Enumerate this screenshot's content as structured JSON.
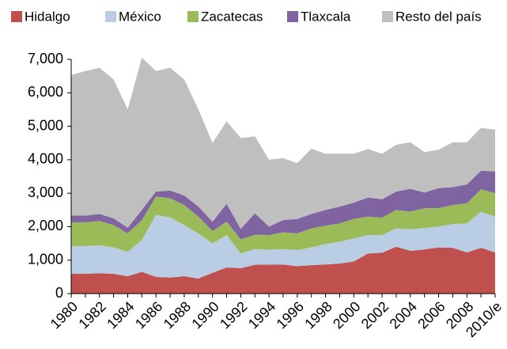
{
  "chart_data": {
    "type": "stacked_area",
    "categories": [
      "1980",
      null,
      "1982",
      null,
      "1984",
      null,
      "1986",
      null,
      "1988",
      null,
      "1990",
      null,
      "1992",
      null,
      "1994",
      null,
      "1996",
      null,
      "1998",
      null,
      "2000",
      null,
      "2002",
      null,
      "2004",
      null,
      "2006",
      null,
      "2008",
      null,
      "2010/e"
    ],
    "series": [
      {
        "name": "Hidalgo",
        "color": "#c0504d",
        "values": [
          600,
          590,
          610,
          590,
          520,
          650,
          500,
          480,
          520,
          450,
          620,
          780,
          760,
          860,
          870,
          870,
          820,
          850,
          870,
          900,
          960,
          1200,
          1220,
          1400,
          1280,
          1320,
          1380,
          1370,
          1230,
          1370,
          1230
        ]
      },
      {
        "name": "México",
        "color": "#b9cde5",
        "values": [
          820,
          830,
          830,
          790,
          730,
          950,
          1850,
          1800,
          1530,
          1350,
          880,
          970,
          440,
          470,
          440,
          460,
          480,
          530,
          610,
          650,
          690,
          550,
          530,
          550,
          640,
          640,
          620,
          710,
          870,
          1080,
          1070
        ]
      },
      {
        "name": "Zacatecas",
        "color": "#9bbb59",
        "values": [
          710,
          710,
          730,
          670,
          550,
          600,
          550,
          570,
          600,
          500,
          370,
          400,
          420,
          430,
          440,
          500,
          500,
          570,
          550,
          550,
          580,
          550,
          520,
          550,
          530,
          590,
          550,
          570,
          600,
          670,
          700
        ]
      },
      {
        "name": "Tlaxcala",
        "color": "#8064a2",
        "values": [
          200,
          200,
          210,
          200,
          170,
          300,
          150,
          230,
          280,
          300,
          280,
          530,
          310,
          640,
          250,
          370,
          430,
          430,
          470,
          500,
          490,
          570,
          550,
          550,
          680,
          470,
          600,
          530,
          560,
          550,
          650
        ]
      },
      {
        "name": "Resto del país",
        "color": "#bfbfbf",
        "values": [
          4200,
          4320,
          4370,
          4150,
          3530,
          4550,
          3600,
          3670,
          3470,
          2900,
          2350,
          2470,
          2720,
          2300,
          2000,
          1850,
          1670,
          1950,
          1680,
          1580,
          1460,
          1450,
          1360,
          1400,
          1390,
          1210,
          1150,
          1340,
          1260,
          1280,
          1250
        ]
      }
    ],
    "ylim": [
      0,
      7000
    ],
    "yticks": [
      0,
      {
        "value": 1000,
        "label": "1,000"
      },
      {
        "value": 2000,
        "label": "2,000"
      },
      {
        "value": 3000,
        "label": "3,000"
      },
      {
        "value": 4000,
        "label": "4,000"
      },
      {
        "value": 5000,
        "label": "5,000"
      },
      {
        "value": 6000,
        "label": "6,000"
      },
      {
        "value": 7000,
        "label": "7,000"
      }
    ],
    "legend": "top"
  }
}
